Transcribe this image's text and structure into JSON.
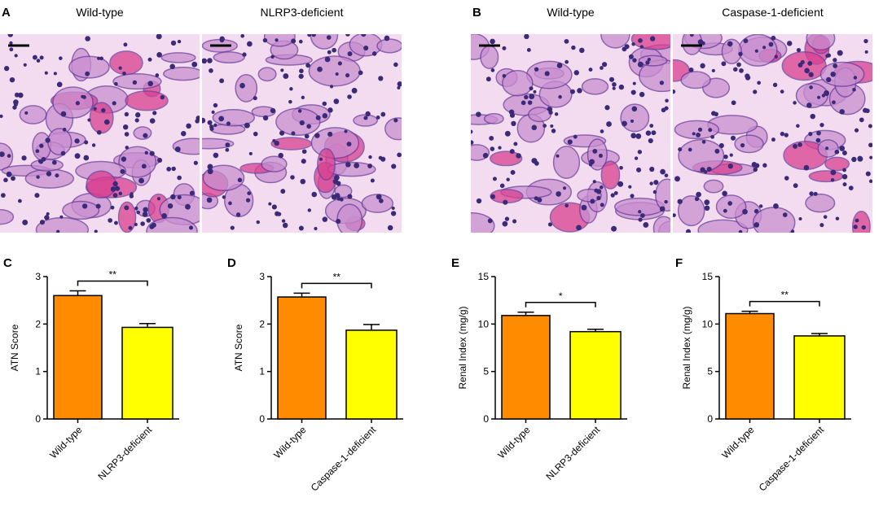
{
  "figure_panels": [
    {
      "letter": "A",
      "images": [
        "Wild-type",
        "NLRP3-deficient"
      ]
    },
    {
      "letter": "B",
      "images": [
        "Wild-type",
        "Caspase-1-deficient"
      ]
    }
  ],
  "chart_data": [
    {
      "type": "bar",
      "label": "C",
      "y_label": "ATN Score",
      "categories": [
        "Wild-type",
        "NLRP3-deficient"
      ],
      "values": [
        2.6,
        1.93
      ],
      "errors": [
        0.1,
        0.08
      ],
      "colors": [
        "#ff8c00",
        "#ffff00"
      ],
      "ylim": [
        0,
        3
      ],
      "yticks": [
        0,
        1,
        2,
        3
      ],
      "annotation": "**"
    },
    {
      "type": "bar",
      "label": "D",
      "y_label": "ATN Score",
      "categories": [
        "Wild-type",
        "Caspase-1-deficient"
      ],
      "values": [
        2.57,
        1.87
      ],
      "errors": [
        0.08,
        0.12
      ],
      "colors": [
        "#ff8c00",
        "#ffff00"
      ],
      "ylim": [
        0,
        3
      ],
      "yticks": [
        0,
        1,
        2,
        3
      ],
      "annotation": "**"
    },
    {
      "type": "bar",
      "label": "E",
      "y_label": "Renal Index (mg/g)",
      "categories": [
        "Wild-type",
        "NLRP3-deficient"
      ],
      "values": [
        10.9,
        9.2
      ],
      "errors": [
        0.35,
        0.25
      ],
      "colors": [
        "#ff8c00",
        "#ffff00"
      ],
      "ylim": [
        0,
        15
      ],
      "yticks": [
        0,
        5,
        10,
        15
      ],
      "annotation": "*"
    },
    {
      "type": "bar",
      "label": "F",
      "y_label": "Renal Index (mg/g)",
      "categories": [
        "Wild-type",
        "Caspase-1-deficient"
      ],
      "values": [
        11.1,
        8.75
      ],
      "errors": [
        0.25,
        0.25
      ],
      "colors": [
        "#ff8c00",
        "#ffff00"
      ],
      "ylim": [
        0,
        15
      ],
      "yticks": [
        0,
        5,
        10,
        15
      ],
      "annotation": "**"
    }
  ]
}
